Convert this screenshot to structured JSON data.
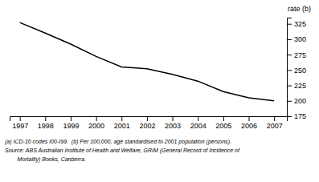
{
  "chart_data": {
    "type": "line",
    "ylabel": "rate (b)",
    "x": [
      1997,
      1998,
      1999,
      2000,
      2001,
      2002,
      2003,
      2004,
      2005,
      2006,
      2007
    ],
    "values": [
      327,
      310,
      292,
      272,
      255,
      252,
      243,
      232,
      215,
      205,
      200
    ],
    "color": "#000000",
    "xlim": [
      1996.6,
      2007.5
    ],
    "xticks": [
      1997,
      1998,
      1999,
      2000,
      2001,
      2002,
      2003,
      2004,
      2005,
      2006,
      2007
    ],
    "ylim": [
      175,
      335
    ],
    "yticks": [
      175,
      200,
      225,
      250,
      275,
      300,
      325
    ],
    "grid": false,
    "annotations": [
      "(a) ICD-10 codes I00-I99.  (b) Per 100,000, age standardised to 2001 population (persons).",
      "Source: ABS Australian Institute of Health and Welfare, GRIM (General Record of Incidence of",
      "        Mortality) Books, Canberra."
    ]
  }
}
